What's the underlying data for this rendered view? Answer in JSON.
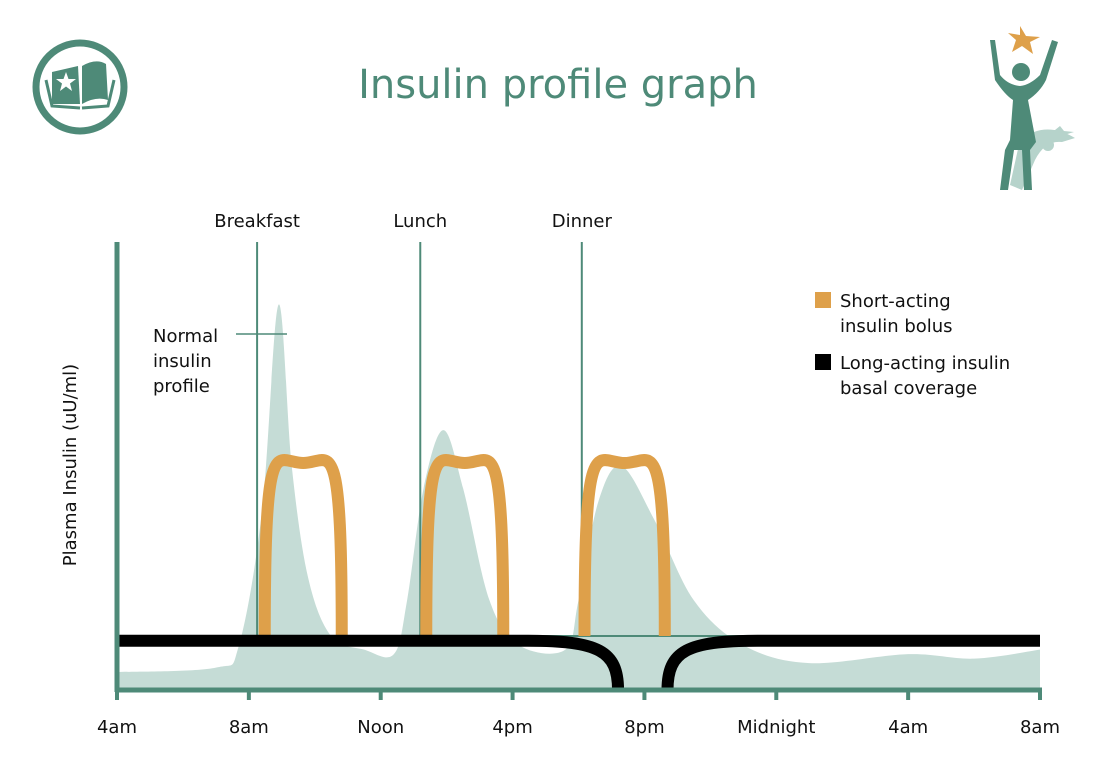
{
  "title": "Insulin profile graph",
  "logo_icon": "book-star-icon",
  "figure_icon": "person-reaching-star-icon",
  "colors": {
    "teal": "#4e8a78",
    "fill": "#c5dcd6",
    "bolus": "#dea04a",
    "basal": "#000000"
  },
  "chart_data": {
    "type": "line",
    "title": "Insulin profile graph",
    "xlabel": "",
    "ylabel": "Plasma Insulin (uU/ml)",
    "x_unit": "hours after 4am",
    "xlim": [
      0,
      28
    ],
    "ylim": [
      0,
      100
    ],
    "x_ticks": [
      {
        "h": 0,
        "label": "4am"
      },
      {
        "h": 4,
        "label": "8am"
      },
      {
        "h": 8,
        "label": "Noon"
      },
      {
        "h": 12,
        "label": "4pm"
      },
      {
        "h": 16,
        "label": "8pm"
      },
      {
        "h": 20,
        "label": "Midnight"
      },
      {
        "h": 24,
        "label": "4am"
      },
      {
        "h": 28,
        "label": "8am"
      }
    ],
    "meals": [
      {
        "label": "Breakfast",
        "h": 4.25
      },
      {
        "label": "Lunch",
        "h": 9.2
      },
      {
        "label": "Dinner",
        "h": 14.1
      }
    ],
    "normal_profile": {
      "label": [
        "Normal",
        "insulin",
        "profile"
      ],
      "points": [
        [
          0,
          4
        ],
        [
          3,
          5
        ],
        [
          3.7,
          10
        ],
        [
          4.4,
          40
        ],
        [
          4.9,
          86
        ],
        [
          5.3,
          50
        ],
        [
          5.8,
          25
        ],
        [
          6.5,
          12
        ],
        [
          7.5,
          9
        ],
        [
          8.4,
          8
        ],
        [
          8.8,
          20
        ],
        [
          9.3,
          45
        ],
        [
          9.9,
          58
        ],
        [
          10.5,
          45
        ],
        [
          11.3,
          20
        ],
        [
          12.2,
          10
        ],
        [
          13.6,
          9
        ],
        [
          14.0,
          20
        ],
        [
          14.6,
          42
        ],
        [
          15.3,
          50
        ],
        [
          16.3,
          38
        ],
        [
          17.5,
          20
        ],
        [
          19,
          10
        ],
        [
          21,
          6
        ],
        [
          24,
          8
        ],
        [
          26,
          7
        ],
        [
          28,
          9
        ]
      ]
    },
    "bolus_series": {
      "name": "Short-acting insulin bolus",
      "doses": [
        {
          "start": 4.3,
          "end": 7.0,
          "peak": 52
        },
        {
          "start": 9.2,
          "end": 11.9,
          "peak": 52
        },
        {
          "start": 14.0,
          "end": 16.8,
          "peak": 52
        }
      ]
    },
    "basal_series": {
      "name": "Long-acting insulin basal coverage",
      "level": 11,
      "gap_start": 15.2,
      "gap_end": 16.7
    },
    "legend": [
      {
        "label": [
          "Short-acting",
          "insulin bolus"
        ],
        "color": "#dea04a"
      },
      {
        "label": [
          "Long-acting insulin",
          "basal coverage"
        ],
        "color": "#000000"
      }
    ],
    "legend_position": "top-right"
  }
}
